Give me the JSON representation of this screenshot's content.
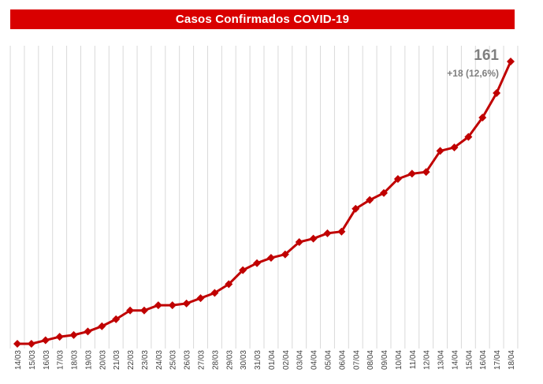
{
  "chart_data": {
    "type": "line",
    "title": "Casos Confirmados COVID-19",
    "xlabel": "",
    "ylabel": "",
    "grid": "vertical",
    "ylim": [
      0,
      165
    ],
    "categories": [
      "14/03",
      "15/03",
      "16/03",
      "17/03",
      "18/03",
      "19/03",
      "20/03",
      "21/03",
      "22/03",
      "23/03",
      "24/03",
      "25/03",
      "26/03",
      "27/03",
      "28/03",
      "29/03",
      "30/03",
      "31/03",
      "01/04",
      "02/04",
      "03/04",
      "04/04",
      "05/04",
      "06/04",
      "07/04",
      "08/04",
      "09/04",
      "10/04",
      "11/04",
      "12/04",
      "13/04",
      "14/04",
      "15/04",
      "16/04",
      "17/04",
      "18/04"
    ],
    "series": [
      {
        "name": "Casos Confirmados",
        "color": "#c00000",
        "values": [
          0,
          0,
          2,
          4,
          5,
          7,
          10,
          14,
          19,
          19,
          22,
          22,
          23,
          26,
          29,
          34,
          42,
          46,
          49,
          51,
          58,
          60,
          63,
          64,
          77,
          82,
          86,
          94,
          97,
          98,
          110,
          112,
          118,
          129,
          143,
          161
        ]
      }
    ],
    "annotation": {
      "value": "161",
      "change": "+18 (12,6%)"
    }
  }
}
